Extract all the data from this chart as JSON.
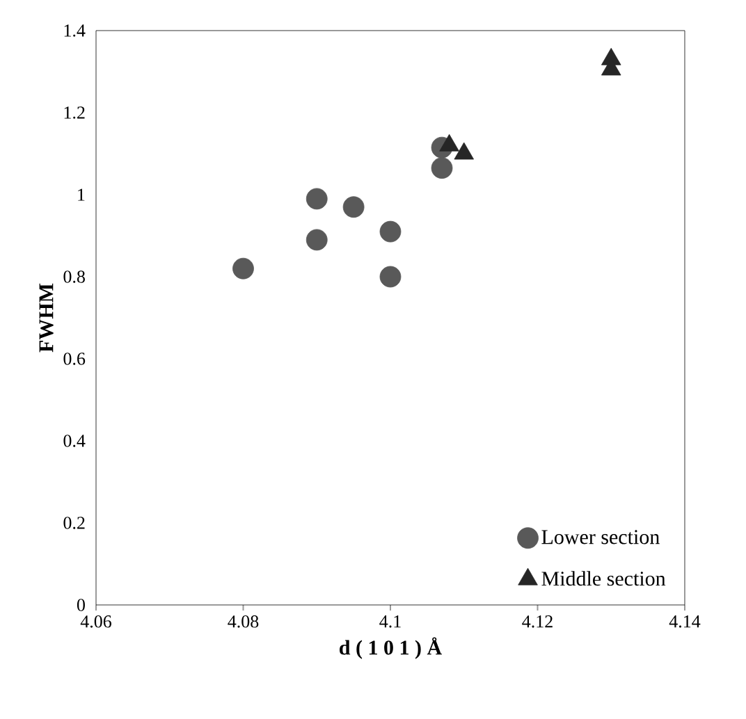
{
  "chart_data": {
    "type": "scatter",
    "xlabel": "d ( 1 0 1 ) Å",
    "ylabel": "FWHM",
    "xlim": [
      4.06,
      4.14
    ],
    "xticks": [
      4.06,
      4.08,
      4.1,
      4.12,
      4.14
    ],
    "ylim": [
      0,
      1.4
    ],
    "yticks": [
      0,
      0.2,
      0.4,
      0.6,
      0.8,
      1,
      1.2,
      1.4
    ],
    "grid": false,
    "legend": "bottom right",
    "series": [
      {
        "name": "Lower section",
        "color": "#595959",
        "marker": "circle",
        "x": [
          4.08,
          4.09,
          4.09,
          4.095,
          4.1,
          4.1,
          4.107,
          4.107
        ],
        "values": [
          0.82,
          0.99,
          0.89,
          0.97,
          0.91,
          0.8,
          1.115,
          1.065
        ]
      },
      {
        "name": "Middle section",
        "color": "#262626",
        "marker": "triangle",
        "x": [
          4.13,
          4.13,
          4.108,
          4.11
        ],
        "values": [
          1.33,
          1.305,
          1.12,
          1.1
        ]
      }
    ]
  }
}
